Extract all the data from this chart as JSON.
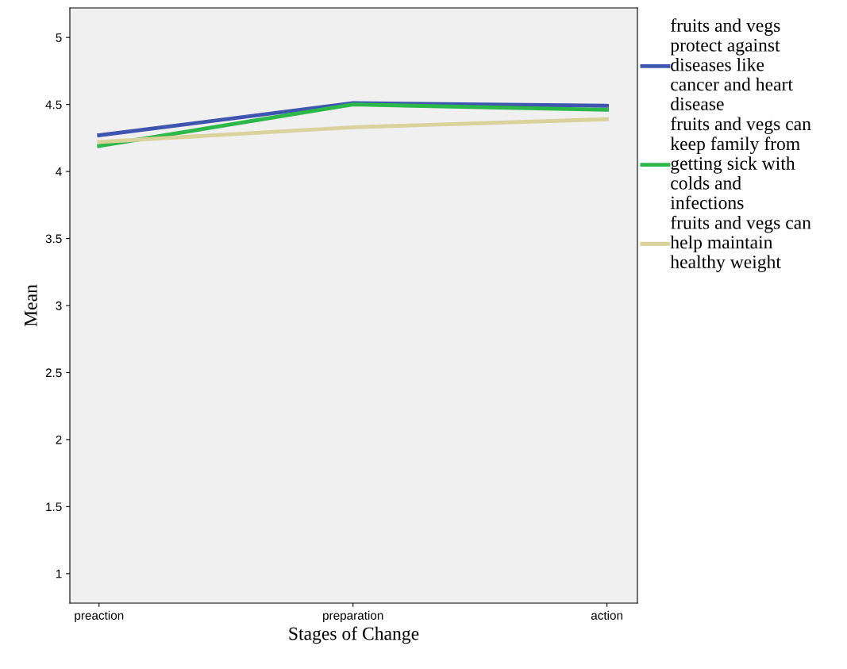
{
  "chart_data": {
    "type": "line",
    "xlabel": "Stages of Change",
    "ylabel": "Mean",
    "categories": [
      "preaction",
      "preparation",
      "action"
    ],
    "series": [
      {
        "name": "fruits and vegs\nprotect against\ndiseases like\ncancer and heart\ndisease",
        "color": "#3f56b0",
        "values": [
          4.27,
          4.51,
          4.49
        ]
      },
      {
        "name": "fruits and vegs can\nkeep family from\ngetting sick with\ncolds and\ninfections",
        "color": "#2db84a",
        "values": [
          4.19,
          4.5,
          4.46
        ]
      },
      {
        "name": "fruits and vegs can\nhelp maintain\nhealthy weight",
        "color": "#d9d29a",
        "values": [
          4.22,
          4.33,
          4.39
        ]
      }
    ],
    "ylim": [
      0.78,
      5.22
    ],
    "yticks": [
      1,
      1.5,
      2,
      2.5,
      3,
      3.5,
      4,
      4.5,
      5
    ],
    "grid": false,
    "legend": "right",
    "marker": "none",
    "line_style": "solid"
  }
}
